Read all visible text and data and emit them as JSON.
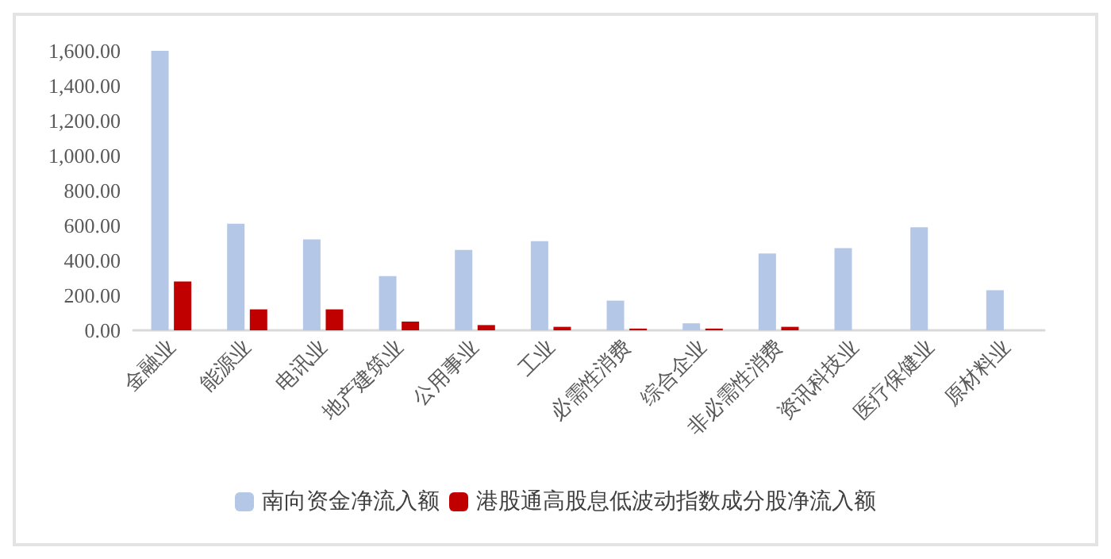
{
  "chart_data": {
    "type": "bar",
    "categories": [
      "金融业",
      "能源业",
      "电讯业",
      "地产建筑业",
      "公用事业",
      "工业",
      "必需性消费",
      "综合企业",
      "非必需性消费",
      "资讯科技业",
      "医疗保健业",
      "原材料业"
    ],
    "series": [
      {
        "name": "南向资金净流入额",
        "color": "#b4c7e7",
        "values": [
          1600,
          610,
          520,
          310,
          460,
          510,
          170,
          40,
          440,
          470,
          590,
          230
        ]
      },
      {
        "name": "港股通高股息低波动指数成分股净流入额",
        "color": "#c00000",
        "values": [
          280,
          120,
          120,
          50,
          30,
          20,
          10,
          10,
          20,
          null,
          null,
          null
        ]
      }
    ],
    "ylim": [
      0,
      1600
    ],
    "yticks": [
      {
        "value": 0,
        "label": "0.00"
      },
      {
        "value": 200,
        "label": "200.00"
      },
      {
        "value": 400,
        "label": "400.00"
      },
      {
        "value": 600,
        "label": "600.00"
      },
      {
        "value": 800,
        "label": "800.00"
      },
      {
        "value": 1000,
        "label": "1,000.00"
      },
      {
        "value": 1200,
        "label": "1,200.00"
      },
      {
        "value": 1400,
        "label": "1,400.00"
      },
      {
        "value": 1600,
        "label": "1,600.00"
      }
    ],
    "grid": false,
    "legend": "bottom"
  }
}
